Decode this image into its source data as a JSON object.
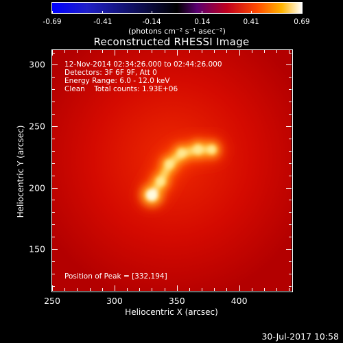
{
  "colorbar": {
    "tick_labels": [
      "-0.69",
      "-0.41",
      "-0.14",
      "0.14",
      "0.41",
      "0.69"
    ],
    "tick_values": [
      -0.69,
      -0.41,
      -0.14,
      0.14,
      0.41,
      0.69
    ],
    "units_label": "(photons cm⁻² s⁻¹ asec⁻²)",
    "range": [
      -0.69,
      0.69
    ]
  },
  "title": "Reconstructed RHESSI Image",
  "info": {
    "time_range": "12-Nov-2014 02:34:26.000 to 02:44:26.000",
    "detectors": "Detectors: 3F 6F 9F, Att 0",
    "energy": "Energy Range: 6.0 - 12.0 keV",
    "algorithm_counts": "Clean    Total counts: 1.93E+06",
    "peak": "Position of Peak = [332,194]"
  },
  "axes": {
    "xlabel": "Heliocentric X (arcsec)",
    "ylabel": "Heliocentric Y (arcsec)",
    "xlim": [
      250,
      442
    ],
    "ylim": [
      116,
      312
    ],
    "x_tick_labels": [
      "250",
      "300",
      "350",
      "400"
    ],
    "x_ticks": [
      250,
      300,
      350,
      400
    ],
    "y_tick_labels": [
      "150",
      "200",
      "250",
      "300"
    ],
    "y_ticks": [
      150,
      200,
      250,
      300
    ]
  },
  "chart_data": {
    "type": "heatmap",
    "title": "Reconstructed RHESSI Image",
    "xlabel": "Heliocentric X (arcsec)",
    "ylabel": "Heliocentric Y (arcsec)",
    "xlim": [
      250,
      442
    ],
    "ylim": [
      116,
      312
    ],
    "peak": [
      332,
      194
    ],
    "sources": [
      {
        "x": 330,
        "y": 194,
        "intensity": 0.69
      },
      {
        "x": 337,
        "y": 205,
        "intensity": 0.55
      },
      {
        "x": 344,
        "y": 219,
        "intensity": 0.55
      },
      {
        "x": 354,
        "y": 228,
        "intensity": 0.55
      },
      {
        "x": 367,
        "y": 231,
        "intensity": 0.58
      },
      {
        "x": 378,
        "y": 231,
        "intensity": 0.52
      }
    ]
  },
  "timestamp": "30-Jul-2017 10:58",
  "colors": {
    "background": "#000000",
    "foreground": "#ffffff"
  }
}
